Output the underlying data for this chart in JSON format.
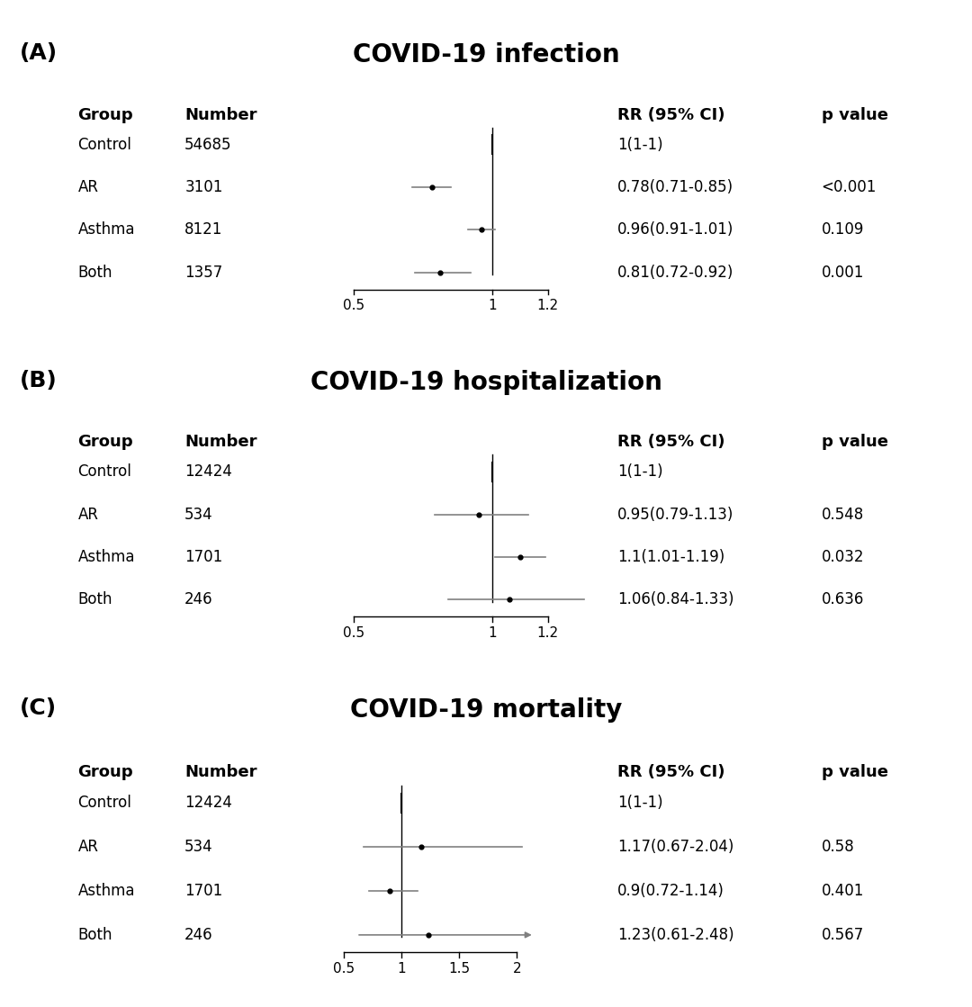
{
  "panels": [
    {
      "label": "(A)",
      "title": "COVID-19 infection",
      "groups": [
        "Control",
        "AR",
        "Asthma",
        "Both"
      ],
      "numbers": [
        "54685",
        "3101",
        "8121",
        "1357"
      ],
      "rr": [
        1.0,
        0.78,
        0.96,
        0.81
      ],
      "ci_low": [
        1.0,
        0.71,
        0.91,
        0.72
      ],
      "ci_high": [
        1.0,
        0.85,
        1.01,
        0.92
      ],
      "rr_text": [
        "1(1-1)",
        "0.78(0.71-0.85)",
        "0.96(0.91-1.01)",
        "0.81(0.72-0.92)"
      ],
      "p_text": [
        "",
        "<0.001",
        "0.109",
        "0.001"
      ],
      "xlim": [
        0.38,
        1.38
      ],
      "xticks": [
        0.5,
        1.0,
        1.2
      ],
      "xtick_labels": [
        "0.5",
        "1",
        "1.2"
      ],
      "ref_line": 1.0,
      "arrows": [
        false,
        false,
        false,
        false
      ],
      "clip_high": 1.38
    },
    {
      "label": "(B)",
      "title": "COVID-19 hospitalization",
      "groups": [
        "Control",
        "AR",
        "Asthma",
        "Both"
      ],
      "numbers": [
        "12424",
        "534",
        "1701",
        "246"
      ],
      "rr": [
        1.0,
        0.95,
        1.1,
        1.06
      ],
      "ci_low": [
        1.0,
        0.79,
        1.01,
        0.84
      ],
      "ci_high": [
        1.0,
        1.13,
        1.19,
        1.33
      ],
      "rr_text": [
        "1(1-1)",
        "0.95(0.79-1.13)",
        "1.1(1.01-1.19)",
        "1.06(0.84-1.33)"
      ],
      "p_text": [
        "",
        "0.548",
        "0.032",
        "0.636"
      ],
      "xlim": [
        0.38,
        1.38
      ],
      "xticks": [
        0.5,
        1.0,
        1.2
      ],
      "xtick_labels": [
        "0.5",
        "1",
        "1.2"
      ],
      "ref_line": 1.0,
      "arrows": [
        false,
        false,
        false,
        false
      ],
      "clip_high": 1.38
    },
    {
      "label": "(C)",
      "title": "COVID-19 mortality",
      "groups": [
        "Control",
        "AR",
        "Asthma",
        "Both"
      ],
      "numbers": [
        "12424",
        "534",
        "1701",
        "246"
      ],
      "rr": [
        1.0,
        1.17,
        0.9,
        1.23
      ],
      "ci_low": [
        1.0,
        0.67,
        0.72,
        0.61
      ],
      "ci_high": [
        1.0,
        2.04,
        1.14,
        2.48
      ],
      "rr_text": [
        "1(1-1)",
        "1.17(0.67-2.04)",
        "0.9(0.72-1.14)",
        "1.23(0.61-2.48)"
      ],
      "p_text": [
        "",
        "0.58",
        "0.401",
        "0.567"
      ],
      "xlim": [
        0.3,
        2.7
      ],
      "xticks": [
        0.5,
        1.0,
        1.5,
        2.0
      ],
      "xtick_labels": [
        "0.5",
        "1",
        "1.5",
        "2"
      ],
      "ref_line": 1.0,
      "arrows": [
        false,
        true,
        false,
        true
      ],
      "clip_high": 2.15
    }
  ],
  "bg_color": "#ffffff",
  "text_color": "#000000",
  "line_color": "#000000",
  "ci_color": "#808080",
  "dot_color": "#000000"
}
